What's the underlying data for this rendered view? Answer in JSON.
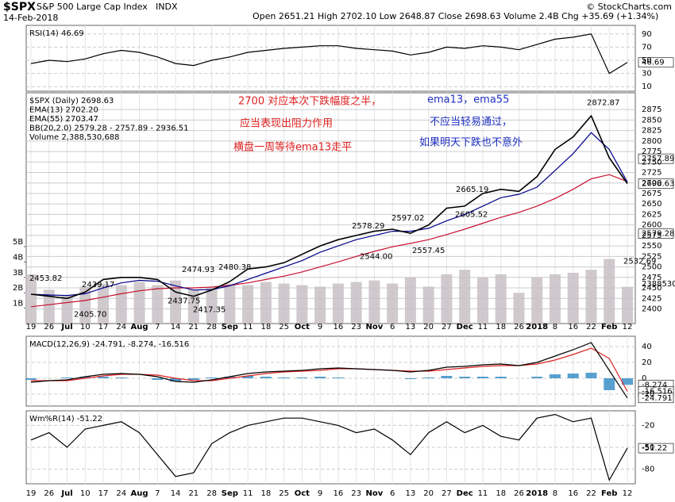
{
  "header": {
    "symbol": "$SPX",
    "name": "S&P 500 Large Cap Index",
    "exchange": "INDX",
    "date": "14-Feb-2018",
    "quote": "Open 2651.21  High 2702.10  Low 2648.87  Close 2698.63  Volume 2.4B  Chg +35.69 (+1.34%)",
    "credit": "© StockCharts.com"
  },
  "chart_data": [
    {
      "type": "line",
      "legend": "RSI(14) 46.69",
      "ylim": [
        3,
        103
      ],
      "yticks": [
        90,
        70,
        50,
        30,
        10
      ],
      "grid": true,
      "series": [
        {
          "color": "#000000",
          "values": [
            45,
            50,
            48,
            52,
            60,
            65,
            62,
            55,
            45,
            42,
            50,
            55,
            62,
            65,
            68,
            70,
            72,
            72,
            68,
            66,
            64,
            58,
            62,
            70,
            68,
            72,
            70,
            66,
            74,
            82,
            85,
            90,
            30,
            46.69
          ]
        }
      ],
      "last_values": [
        46.69
      ]
    },
    {
      "type": "line",
      "legend": [
        "$SPX (Daily) 2698.63",
        "EMA(13) 2702.20",
        "EMA(55) 2703.47",
        "BB(20,2.0) 2579.28 - 2757.89 - 2936.51",
        "Volume 2,388,530,688"
      ],
      "categories": [
        "19",
        "26",
        "Jul",
        "10",
        "17",
        "24",
        "Aug",
        "7",
        "14",
        "21",
        "28",
        "Sep",
        "11",
        "18",
        "25",
        "Oct",
        "9",
        "16",
        "23",
        "Nov",
        "6",
        "13",
        "20",
        "27",
        "Dec",
        "11",
        "18",
        "26",
        "2018",
        "8",
        "16",
        "22",
        "Feb",
        "12"
      ],
      "ylim": [
        2365,
        2915
      ],
      "yticks": [
        2400,
        2425,
        2450,
        2475,
        2500,
        2525,
        2550,
        2575,
        2600,
        2625,
        2650,
        2675,
        2700,
        2725,
        2750,
        2775,
        2800,
        2825,
        2850,
        2875
      ],
      "y2lim": [
        0,
        15000000000
      ],
      "y2ticks": [
        {
          "value": 1000000000,
          "label": "1B"
        },
        {
          "value": 2000000000,
          "label": "2B"
        },
        {
          "value": 3000000000,
          "label": "3B"
        },
        {
          "value": 4000000000,
          "label": "4B"
        },
        {
          "value": 5000000000,
          "label": "5B"
        }
      ],
      "grid": true,
      "series": [
        {
          "color": "#c8c0c4",
          "axis": "y2",
          "kind": "bar",
          "values": [
            3200000000,
            2200000000,
            1800000000,
            2400000000,
            2600000000,
            2500000000,
            2700000000,
            2500000000,
            2800000000,
            2200000000,
            2300000000,
            2600000000,
            2500000000,
            2700000000,
            2600000000,
            2500000000,
            2400000000,
            2600000000,
            2700000000,
            2800000000,
            2600000000,
            3000000000,
            2400000000,
            3200000000,
            3500000000,
            3000000000,
            3200000000,
            2000000000,
            3000000000,
            3200000000,
            3300000000,
            3500000000,
            4200000000,
            2388530688
          ]
        },
        {
          "color": "#c8102e",
          "values": [
            2405,
            2410,
            2415,
            2420,
            2428,
            2436,
            2443,
            2448,
            2450,
            2450,
            2452,
            2456,
            2462,
            2470,
            2478,
            2488,
            2500,
            2512,
            2525,
            2537,
            2548,
            2556,
            2565,
            2577,
            2590,
            2604,
            2618,
            2630,
            2645,
            2663,
            2685,
            2710,
            2720,
            2703.47
          ]
        },
        {
          "color": "#00008b",
          "values": [
            2435,
            2433,
            2432,
            2436,
            2450,
            2462,
            2468,
            2466,
            2455,
            2445,
            2446,
            2455,
            2470,
            2485,
            2500,
            2515,
            2535,
            2550,
            2565,
            2575,
            2585,
            2585,
            2592,
            2610,
            2625,
            2645,
            2665,
            2673,
            2690,
            2730,
            2770,
            2820,
            2780,
            2702.2
          ]
        },
        {
          "color": "#000000",
          "values": [
            2435,
            2430,
            2425,
            2440,
            2470,
            2475,
            2475,
            2470,
            2440,
            2430,
            2445,
            2465,
            2495,
            2500,
            2510,
            2530,
            2550,
            2565,
            2575,
            2585,
            2590,
            2580,
            2600,
            2640,
            2645,
            2675,
            2685,
            2680,
            2715,
            2780,
            2810,
            2860,
            2760,
            2698.63
          ]
        }
      ],
      "price_labels": [
        2453.82,
        2439.17,
        {
          "value": 2405.7,
          "label": "2405.70"
        },
        2474.93,
        2437.75,
        2417.35,
        2480.38,
        2578.29,
        {
          "value": 2544,
          "label": "2544.00"
        },
        2597.02,
        2557.45,
        2605.52,
        2665.19,
        2872.87,
        2532.69
      ],
      "last_values": [
        2757.89,
        2698.63,
        2579.28
      ],
      "volume_tag": "2388530",
      "annotations": [
        "2700 对应本次下跌幅度之半，",
        "应当表现出阻力作用",
        "横盘一周等待ema13走平",
        "ema13，ema55",
        "不应当轻易通过，",
        "如果明天下跌也不意外"
      ]
    },
    {
      "type": "line",
      "legend": "MACD(12,26,9) -24.791, -8.274, -16.516",
      "ylim": [
        -35,
        53
      ],
      "yticks": [
        40,
        20,
        0,
        -20
      ],
      "grid": true,
      "series": [
        {
          "color": "#3a8fc8",
          "kind": "bar",
          "values": [
            -2,
            0,
            1,
            2,
            2,
            1,
            0,
            -2,
            -4,
            -2,
            1,
            2,
            3,
            2,
            1,
            1,
            2,
            1,
            0,
            0,
            0,
            -1,
            1,
            3,
            2,
            2,
            2,
            0,
            2,
            5,
            6,
            7,
            -15,
            -8.274
          ]
        },
        {
          "color": "#e02020",
          "values": [
            -3,
            -3,
            -3,
            0,
            3,
            5,
            5,
            4,
            0,
            -3,
            -3,
            0,
            3,
            6,
            8,
            9,
            10,
            12,
            12,
            11,
            10,
            9,
            9,
            11,
            13,
            15,
            16,
            16,
            18,
            23,
            30,
            38,
            25,
            -16.516
          ]
        },
        {
          "color": "#000000",
          "values": [
            -5,
            -3,
            -2,
            2,
            5,
            6,
            5,
            2,
            -4,
            -5,
            -2,
            2,
            6,
            8,
            9,
            10,
            12,
            13,
            12,
            11,
            10,
            8,
            10,
            14,
            15,
            17,
            18,
            16,
            20,
            28,
            36,
            45,
            10,
            -24.791
          ]
        }
      ],
      "last_values": [
        -8.274,
        -16.516,
        -24.791
      ]
    },
    {
      "type": "line",
      "legend": "Wm%R(14) -51.22",
      "ylim": [
        -100,
        0
      ],
      "yticks": [
        -20,
        -50,
        -80
      ],
      "grid": true,
      "series": [
        {
          "color": "#000000",
          "values": [
            -40,
            -30,
            -50,
            -25,
            -20,
            -15,
            -30,
            -60,
            -90,
            -85,
            -45,
            -30,
            -20,
            -15,
            -10,
            -10,
            -15,
            -20,
            -30,
            -25,
            -40,
            -60,
            -30,
            -15,
            -30,
            -20,
            -35,
            -40,
            -10,
            -5,
            -15,
            -10,
            -95,
            -51.22
          ]
        }
      ],
      "last_values": [
        -51.22
      ]
    }
  ]
}
